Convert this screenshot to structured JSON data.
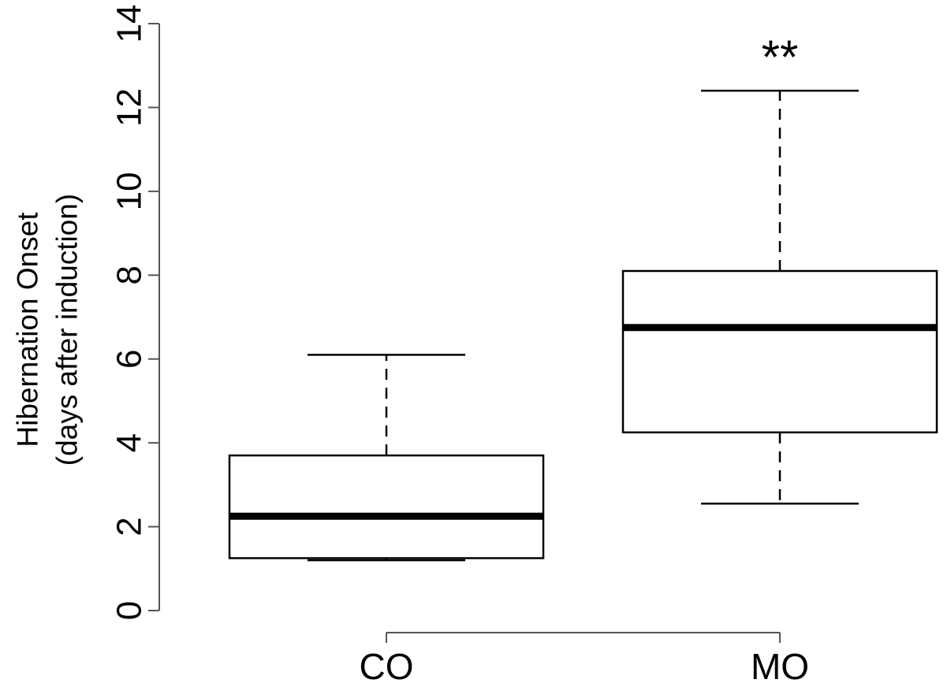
{
  "chart_data": {
    "type": "box",
    "title": "",
    "xlabel": "",
    "ylabel": [
      "Hibernation Onset",
      "(days after induction)"
    ],
    "ylim": [
      0,
      14
    ],
    "yticks": [
      0,
      2,
      4,
      6,
      8,
      10,
      12,
      14
    ],
    "categories": [
      "CO",
      "MO"
    ],
    "boxes": [
      {
        "category": "CO",
        "min": 1.2,
        "q1": 1.25,
        "median": 2.25,
        "q3": 3.7,
        "max": 6.1
      },
      {
        "category": "MO",
        "min": 2.55,
        "q1": 4.25,
        "median": 6.75,
        "q3": 8.1,
        "max": 12.4
      }
    ],
    "annotations": [
      {
        "text": "**",
        "category": "MO",
        "y": 13.2
      }
    ],
    "colors": {
      "box_fill": "#ffffff",
      "stroke": "#000000",
      "axis": "#555555"
    }
  }
}
